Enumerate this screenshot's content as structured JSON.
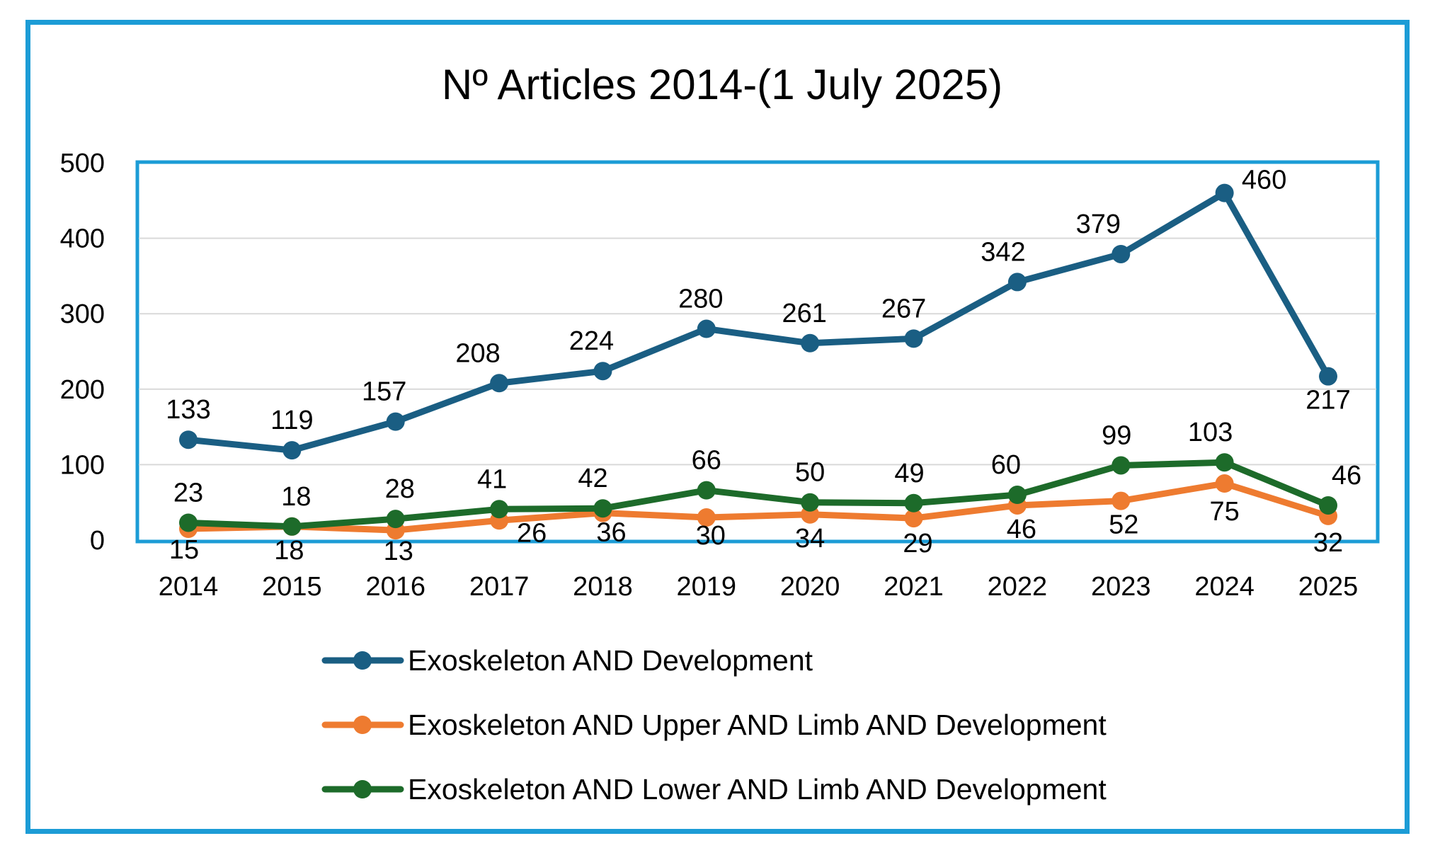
{
  "chart_data": {
    "type": "line",
    "title": "Nº Articles 2014-(1 July 2025)",
    "xlabel": "",
    "ylabel": "",
    "categories": [
      "2014",
      "2015",
      "2016",
      "2017",
      "2018",
      "2019",
      "2020",
      "2021",
      "2022",
      "2023",
      "2024",
      "2025"
    ],
    "ylim": [
      0,
      500
    ],
    "yticks": [
      0,
      100,
      200,
      300,
      400,
      500
    ],
    "grid": true,
    "legend_position": "bottom",
    "series": [
      {
        "name": "Exoskeleton AND Development",
        "color": "#1a5e83",
        "values": [
          133,
          119,
          157,
          208,
          224,
          280,
          261,
          267,
          342,
          379,
          460,
          217
        ]
      },
      {
        "name": "Exoskeleton AND Upper AND Limb AND Development",
        "color": "#ee7b30",
        "values": [
          15,
          18,
          13,
          26,
          36,
          30,
          34,
          29,
          46,
          52,
          75,
          32
        ]
      },
      {
        "name": "Exoskeleton AND Lower AND Limb AND Development",
        "color": "#1d6b2a",
        "values": [
          23,
          18,
          28,
          41,
          42,
          66,
          50,
          49,
          60,
          99,
          103,
          46
        ]
      }
    ]
  }
}
